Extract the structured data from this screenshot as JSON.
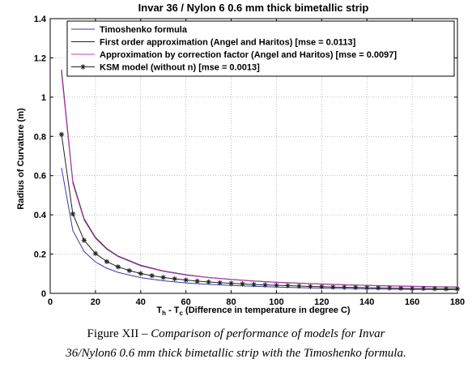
{
  "chart_data": {
    "type": "line",
    "title": "Invar 36 / Nylon 6 0.6 mm thick bimetallic strip",
    "xlabel_main": "T",
    "xlabel_sub_h": "h",
    "xlabel_sep": " - T",
    "xlabel_sub_c": "c",
    "xlabel_rest": " (Difference in temperature in degree C)",
    "ylabel": "Radius of Curvature (m)",
    "xlim": [
      0,
      180
    ],
    "ylim": [
      0,
      1.4
    ],
    "xticks": [
      "0",
      "20",
      "40",
      "60",
      "80",
      "100",
      "120",
      "140",
      "160",
      "180"
    ],
    "yticks": [
      "0",
      "0.2",
      "0.4",
      "0.6",
      "0.8",
      "1",
      "1.2",
      "1.4"
    ],
    "grid": true,
    "legend_position": "top-right",
    "series": [
      {
        "name": "Timoshenko formula",
        "color": "#3a3aa8",
        "marker": "none",
        "x": [
          5,
          10,
          15,
          20,
          25,
          30,
          40,
          50,
          60,
          70,
          80,
          90,
          100,
          110,
          120,
          130,
          140,
          150,
          160,
          170,
          180
        ],
        "y": [
          0.64,
          0.32,
          0.213,
          0.16,
          0.128,
          0.107,
          0.08,
          0.064,
          0.053,
          0.046,
          0.04,
          0.036,
          0.032,
          0.029,
          0.027,
          0.025,
          0.023,
          0.021,
          0.02,
          0.019,
          0.018
        ]
      },
      {
        "name": "First order approximation (Angel and Haritos) [mse = 0.0113]",
        "color": "#222222",
        "marker": "none",
        "x": [
          5,
          10,
          15,
          20,
          25,
          30,
          40,
          50,
          60,
          70,
          80,
          90,
          100,
          110,
          120,
          130,
          140,
          150,
          160,
          170,
          180
        ],
        "y": [
          1.14,
          0.57,
          0.38,
          0.285,
          0.228,
          0.19,
          0.143,
          0.114,
          0.095,
          0.081,
          0.071,
          0.063,
          0.057,
          0.052,
          0.048,
          0.044,
          0.041,
          0.038,
          0.036,
          0.034,
          0.032
        ]
      },
      {
        "name": "Approximation by correction factor (Angel and Haritos) [mse = 0.0097]",
        "color": "#c040c0",
        "marker": "none",
        "x": [
          5,
          10,
          15,
          20,
          25,
          30,
          40,
          50,
          60,
          70,
          80,
          90,
          100,
          110,
          120,
          130,
          140,
          150,
          160,
          170,
          180
        ],
        "y": [
          1.12,
          0.56,
          0.373,
          0.28,
          0.224,
          0.187,
          0.14,
          0.112,
          0.093,
          0.08,
          0.07,
          0.062,
          0.056,
          0.051,
          0.047,
          0.043,
          0.04,
          0.037,
          0.035,
          0.033,
          0.031
        ]
      },
      {
        "name": "KSM model (without n) [mse = 0.0013]",
        "color": "#222222",
        "marker": "star",
        "x": [
          5,
          10,
          15,
          20,
          25,
          30,
          35,
          40,
          45,
          50,
          55,
          60,
          65,
          70,
          75,
          80,
          85,
          90,
          95,
          100,
          105,
          110,
          115,
          120,
          125,
          130,
          135,
          140,
          145,
          150,
          155,
          160,
          165,
          170,
          175,
          180
        ],
        "y": [
          0.81,
          0.405,
          0.27,
          0.203,
          0.162,
          0.135,
          0.116,
          0.101,
          0.09,
          0.081,
          0.074,
          0.068,
          0.062,
          0.058,
          0.054,
          0.051,
          0.048,
          0.045,
          0.043,
          0.041,
          0.039,
          0.037,
          0.035,
          0.034,
          0.032,
          0.031,
          0.03,
          0.029,
          0.028,
          0.027,
          0.026,
          0.025,
          0.025,
          0.024,
          0.023,
          0.023
        ]
      }
    ]
  },
  "caption": {
    "lead": "Figure XII – ",
    "text_line1": "Comparison of performance of models for Invar",
    "text_line2": "36/Nylon6 0.6 mm thick bimetallic strip with the Timoshenko formula."
  }
}
